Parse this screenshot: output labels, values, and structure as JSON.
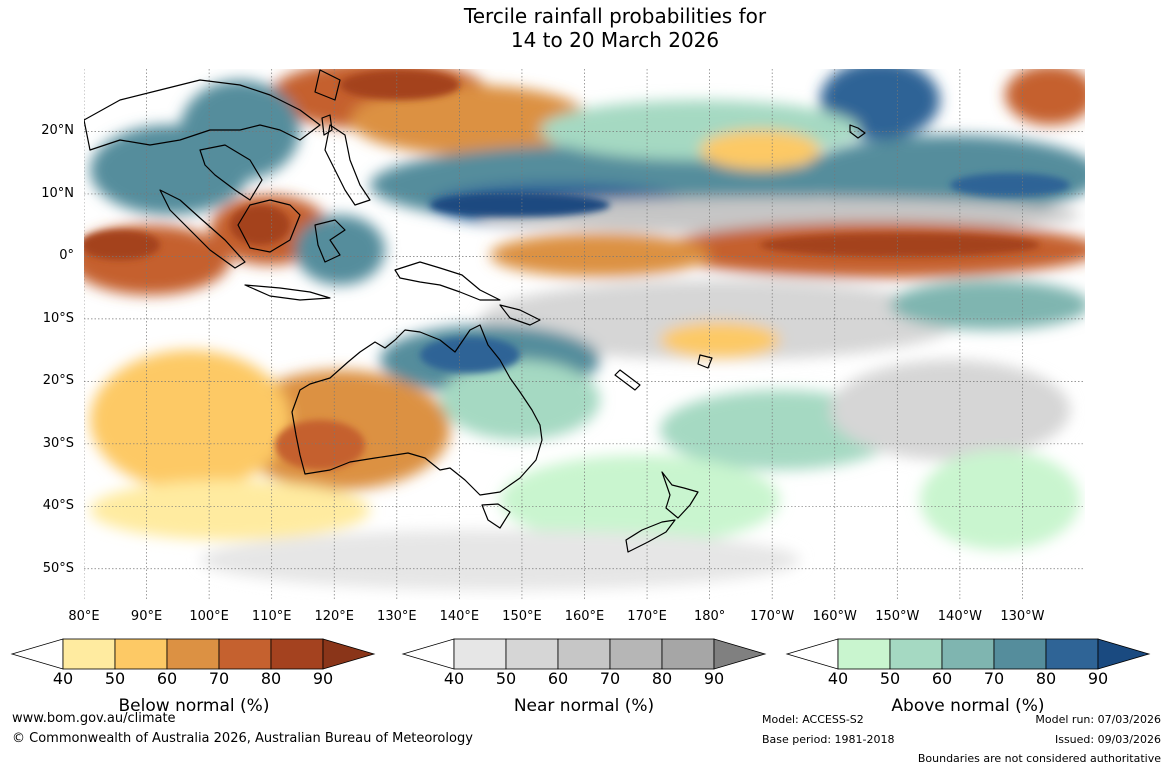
{
  "title": {
    "line1": "Tercile rainfall probabilities for",
    "line2": "14 to 20 March 2026"
  },
  "map": {
    "lat_labels": [
      "20°N",
      "10°N",
      "0°",
      "10°S",
      "20°S",
      "30°S",
      "40°S",
      "50°S"
    ],
    "lat_values": [
      20,
      10,
      0,
      -10,
      -20,
      -30,
      -40,
      -50
    ],
    "lon_labels": [
      "80°E",
      "90°E",
      "100°E",
      "110°E",
      "120°E",
      "130°E",
      "140°E",
      "150°E",
      "160°E",
      "170°E",
      "180°",
      "170°W",
      "160°W",
      "150°W",
      "140°W",
      "130°W"
    ],
    "lon_values": [
      80,
      90,
      100,
      110,
      120,
      130,
      140,
      150,
      160,
      170,
      180,
      190,
      200,
      210,
      220,
      230
    ],
    "extent": {
      "lon_min": 80,
      "lon_max": 240,
      "lat_min": -55,
      "lat_max": 30
    },
    "gridlines": true
  },
  "colorbars": [
    {
      "id": "below",
      "title": "Below normal (%)",
      "ticks": [
        "40",
        "50",
        "60",
        "70",
        "80",
        "90"
      ],
      "colors": [
        "#ffeba0",
        "#fdc965",
        "#dc9143",
        "#c5612f",
        "#a4421f"
      ],
      "over_color": "#8a3519"
    },
    {
      "id": "near",
      "title": "Near normal (%)",
      "ticks": [
        "40",
        "50",
        "60",
        "70",
        "80",
        "90"
      ],
      "colors": [
        "#e6e6e6",
        "#d6d6d6",
        "#c6c6c6",
        "#b6b6b6",
        "#a6a6a6"
      ],
      "over_color": "#808080"
    },
    {
      "id": "above",
      "title": "Above normal (%)",
      "ticks": [
        "40",
        "50",
        "60",
        "70",
        "80",
        "90"
      ],
      "colors": [
        "#c9f5cf",
        "#a5d9c2",
        "#7fb5b0",
        "#558d9c",
        "#2f6496"
      ],
      "over_color": "#1a4a80"
    }
  ],
  "footer": {
    "website": "www.bom.gov.au/climate",
    "copyright": "© Commonwealth of Australia 2026, Australian Bureau of Meteorology",
    "model": "Model: ACCESS-S2",
    "base_period": "Base period: 1981-2018",
    "model_run": "Model run: 07/03/2026",
    "issued": "Issued: 09/03/2026",
    "disclaimer": "Boundaries are not considered authoritative"
  }
}
